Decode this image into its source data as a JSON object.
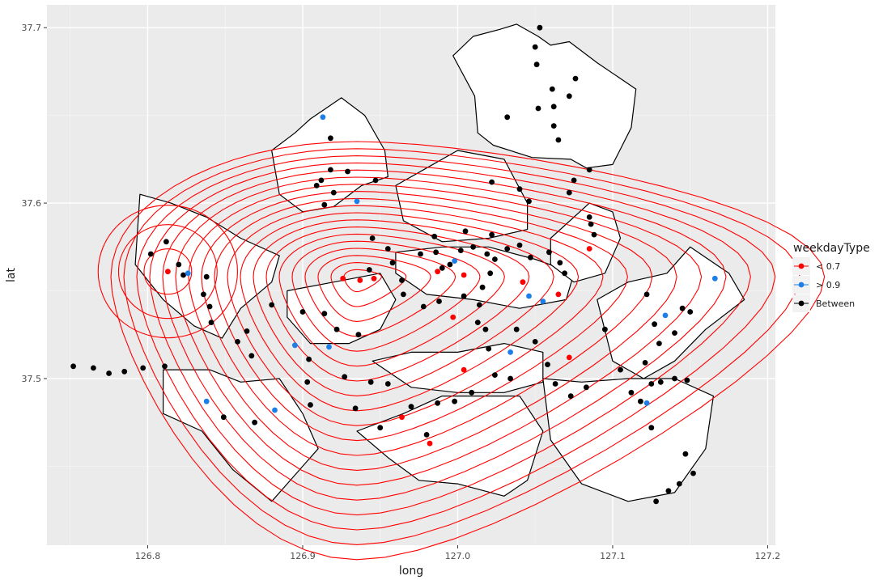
{
  "chart_data": {
    "type": "scatter",
    "xlabel": "long",
    "ylabel": "lat",
    "xlim": [
      126.735,
      127.205
    ],
    "ylim": [
      126.0,
      37.0
    ],
    "xlim_data": [
      126.735,
      127.205
    ],
    "ylim_data": [
      37.405,
      37.713
    ],
    "x_ticks": [
      126.8,
      126.9,
      127.0,
      127.1,
      127.2
    ],
    "x_tick_labels": [
      "126.8",
      "126.9",
      "127.0",
      "127.1",
      "127.2"
    ],
    "y_ticks": [
      37.5,
      37.6,
      37.7
    ],
    "y_tick_labels": [
      "37.5",
      "37.6",
      "37.7"
    ],
    "grid": true,
    "legend": {
      "title": "weekdayType",
      "placement": "right",
      "entries": [
        {
          "label": "< 0.7",
          "color": "#ff0000"
        },
        {
          "label": "> 0.9",
          "color": "#1e7ee8"
        },
        {
          "label": "Between",
          "color": "#000000"
        }
      ]
    },
    "series": [
      {
        "name": "< 0.7",
        "color": "#ff0000",
        "points": [
          [
            126.813,
            37.561
          ],
          [
            126.926,
            37.557
          ],
          [
            126.937,
            37.556
          ],
          [
            126.946,
            37.557
          ],
          [
            126.987,
            37.561
          ],
          [
            126.997,
            37.535
          ],
          [
            127.004,
            37.559
          ],
          [
            127.004,
            37.505
          ],
          [
            127.042,
            37.555
          ],
          [
            127.065,
            37.548
          ],
          [
            127.085,
            37.574
          ],
          [
            127.072,
            37.512
          ],
          [
            126.964,
            37.478
          ],
          [
            126.982,
            37.463
          ]
        ]
      },
      {
        "name": "> 0.9",
        "color": "#1e7ee8",
        "points": [
          [
            126.913,
            37.649
          ],
          [
            126.935,
            37.601
          ],
          [
            126.826,
            37.56
          ],
          [
            126.895,
            37.519
          ],
          [
            126.917,
            37.518
          ],
          [
            126.838,
            37.487
          ],
          [
            126.882,
            37.482
          ],
          [
            126.998,
            37.567
          ],
          [
            127.046,
            37.547
          ],
          [
            127.055,
            37.544
          ],
          [
            127.034,
            37.515
          ],
          [
            127.134,
            37.536
          ],
          [
            127.166,
            37.557
          ],
          [
            127.122,
            37.486
          ]
        ]
      },
      {
        "name": "Between",
        "color": "#000000",
        "points": [
          [
            127.053,
            37.7
          ],
          [
            127.05,
            37.689
          ],
          [
            127.051,
            37.679
          ],
          [
            127.032,
            37.649
          ],
          [
            127.052,
            37.654
          ],
          [
            127.061,
            37.665
          ],
          [
            127.062,
            37.655
          ],
          [
            127.072,
            37.661
          ],
          [
            127.076,
            37.671
          ],
          [
            127.062,
            37.644
          ],
          [
            127.065,
            37.636
          ],
          [
            127.022,
            37.612
          ],
          [
            127.04,
            37.608
          ],
          [
            127.046,
            37.601
          ],
          [
            127.075,
            37.613
          ],
          [
            127.085,
            37.619
          ],
          [
            127.072,
            37.606
          ],
          [
            127.085,
            37.592
          ],
          [
            127.086,
            37.588
          ],
          [
            127.088,
            37.582
          ],
          [
            126.918,
            37.637
          ],
          [
            126.918,
            37.619
          ],
          [
            126.929,
            37.618
          ],
          [
            126.912,
            37.613
          ],
          [
            126.92,
            37.606
          ],
          [
            126.914,
            37.599
          ],
          [
            126.909,
            37.61
          ],
          [
            126.947,
            37.613
          ],
          [
            126.802,
            37.571
          ],
          [
            126.812,
            37.578
          ],
          [
            126.82,
            37.565
          ],
          [
            126.838,
            37.558
          ],
          [
            126.836,
            37.548
          ],
          [
            126.84,
            37.541
          ],
          [
            126.841,
            37.532
          ],
          [
            126.823,
            37.559
          ],
          [
            126.864,
            37.527
          ],
          [
            126.858,
            37.521
          ],
          [
            126.867,
            37.513
          ],
          [
            126.849,
            37.478
          ],
          [
            126.869,
            37.475
          ],
          [
            126.904,
            37.511
          ],
          [
            126.903,
            37.498
          ],
          [
            126.905,
            37.485
          ],
          [
            126.927,
            37.501
          ],
          [
            126.934,
            37.483
          ],
          [
            126.944,
            37.498
          ],
          [
            126.955,
            37.497
          ],
          [
            126.97,
            37.484
          ],
          [
            126.98,
            37.468
          ],
          [
            126.987,
            37.486
          ],
          [
            126.998,
            37.487
          ],
          [
            127.009,
            37.492
          ],
          [
            126.95,
            37.472
          ],
          [
            126.943,
            37.562
          ],
          [
            126.958,
            37.566
          ],
          [
            126.964,
            37.556
          ],
          [
            126.976,
            37.571
          ],
          [
            126.986,
            37.572
          ],
          [
            126.99,
            37.563
          ],
          [
            126.995,
            37.565
          ],
          [
            127.002,
            37.573
          ],
          [
            127.01,
            37.575
          ],
          [
            127.019,
            37.571
          ],
          [
            127.024,
            37.568
          ],
          [
            127.032,
            37.574
          ],
          [
            127.04,
            37.576
          ],
          [
            127.047,
            37.569
          ],
          [
            127.059,
            37.572
          ],
          [
            127.066,
            37.566
          ],
          [
            127.069,
            37.56
          ],
          [
            127.021,
            37.56
          ],
          [
            127.016,
            37.552
          ],
          [
            127.014,
            37.542
          ],
          [
            127.018,
            37.528
          ],
          [
            127.02,
            37.517
          ],
          [
            127.024,
            37.502
          ],
          [
            127.034,
            37.5
          ],
          [
            127.038,
            37.528
          ],
          [
            127.05,
            37.521
          ],
          [
            127.058,
            37.508
          ],
          [
            127.063,
            37.497
          ],
          [
            127.073,
            37.49
          ],
          [
            127.083,
            37.495
          ],
          [
            127.095,
            37.528
          ],
          [
            127.105,
            37.505
          ],
          [
            127.112,
            37.492
          ],
          [
            127.118,
            37.487
          ],
          [
            127.125,
            37.497
          ],
          [
            127.13,
            37.52
          ],
          [
            127.14,
            37.526
          ],
          [
            127.145,
            37.54
          ],
          [
            127.15,
            37.538
          ],
          [
            127.122,
            37.548
          ],
          [
            127.127,
            37.531
          ],
          [
            127.121,
            37.509
          ],
          [
            127.131,
            37.498
          ],
          [
            127.14,
            37.5
          ],
          [
            127.148,
            37.499
          ],
          [
            127.125,
            37.472
          ],
          [
            126.752,
            37.507
          ],
          [
            126.765,
            37.506
          ],
          [
            126.775,
            37.503
          ],
          [
            126.785,
            37.504
          ],
          [
            126.797,
            37.506
          ],
          [
            126.811,
            37.507
          ],
          [
            127.147,
            37.457
          ],
          [
            127.152,
            37.446
          ],
          [
            127.143,
            37.44
          ],
          [
            127.136,
            37.436
          ],
          [
            127.128,
            37.43
          ],
          [
            126.945,
            37.58
          ],
          [
            126.955,
            37.574
          ],
          [
            126.985,
            37.581
          ],
          [
            127.005,
            37.584
          ],
          [
            127.022,
            37.582
          ],
          [
            126.965,
            37.548
          ],
          [
            126.978,
            37.541
          ],
          [
            126.988,
            37.544
          ],
          [
            127.004,
            37.547
          ],
          [
            127.013,
            37.532
          ],
          [
            126.922,
            37.528
          ],
          [
            126.914,
            37.537
          ],
          [
            126.936,
            37.525
          ],
          [
            126.88,
            37.542
          ],
          [
            126.9,
            37.538
          ]
        ]
      }
    ],
    "district_outlines": [
      [
        [
          127.027,
          37.699
        ],
        [
          127.038,
          37.702
        ],
        [
          127.052,
          37.695
        ],
        [
          127.06,
          37.69
        ],
        [
          127.072,
          37.692
        ],
        [
          127.09,
          37.68
        ],
        [
          127.115,
          37.665
        ],
        [
          127.112,
          37.643
        ],
        [
          127.1,
          37.622
        ],
        [
          127.083,
          37.62
        ],
        [
          127.073,
          37.625
        ],
        [
          127.048,
          37.626
        ],
        [
          127.023,
          37.633
        ],
        [
          127.013,
          37.64
        ],
        [
          127.011,
          37.661
        ],
        [
          126.997,
          37.684
        ],
        [
          127.01,
          37.695
        ],
        [
          127.027,
          37.699
        ]
      ],
      [
        [
          126.88,
          37.63
        ],
        [
          126.895,
          37.64
        ],
        [
          126.905,
          37.648
        ],
        [
          126.925,
          37.66
        ],
        [
          126.94,
          37.65
        ],
        [
          126.953,
          37.63
        ],
        [
          126.955,
          37.615
        ],
        [
          126.938,
          37.61
        ],
        [
          126.92,
          37.598
        ],
        [
          126.9,
          37.595
        ],
        [
          126.885,
          37.605
        ],
        [
          126.88,
          37.63
        ]
      ],
      [
        [
          126.795,
          37.605
        ],
        [
          126.815,
          37.6
        ],
        [
          126.838,
          37.592
        ],
        [
          126.86,
          37.58
        ],
        [
          126.885,
          37.57
        ],
        [
          126.88,
          37.555
        ],
        [
          126.86,
          37.54
        ],
        [
          126.848,
          37.523
        ],
        [
          126.83,
          37.53
        ],
        [
          126.81,
          37.545
        ],
        [
          126.792,
          37.565
        ],
        [
          126.795,
          37.605
        ]
      ],
      [
        [
          126.81,
          37.505
        ],
        [
          126.84,
          37.505
        ],
        [
          126.86,
          37.498
        ],
        [
          126.885,
          37.5
        ],
        [
          126.9,
          37.48
        ],
        [
          126.91,
          37.46
        ],
        [
          126.89,
          37.44
        ],
        [
          126.88,
          37.43
        ],
        [
          126.855,
          37.448
        ],
        [
          126.835,
          37.47
        ],
        [
          126.81,
          37.48
        ],
        [
          126.81,
          37.505
        ]
      ],
      [
        [
          126.935,
          37.47
        ],
        [
          126.955,
          37.455
        ],
        [
          126.975,
          37.442
        ],
        [
          127.0,
          37.44
        ],
        [
          127.03,
          37.433
        ],
        [
          127.045,
          37.442
        ],
        [
          127.055,
          37.47
        ],
        [
          127.04,
          37.49
        ],
        [
          127.01,
          37.49
        ],
        [
          126.99,
          37.49
        ],
        [
          126.965,
          37.48
        ],
        [
          126.935,
          37.47
        ]
      ],
      [
        [
          127.055,
          37.5
        ],
        [
          127.08,
          37.498
        ],
        [
          127.11,
          37.5
        ],
        [
          127.14,
          37.5
        ],
        [
          127.165,
          37.49
        ],
        [
          127.16,
          37.46
        ],
        [
          127.14,
          37.435
        ],
        [
          127.11,
          37.43
        ],
        [
          127.08,
          37.44
        ],
        [
          127.06,
          37.465
        ],
        [
          127.055,
          37.5
        ]
      ],
      [
        [
          127.09,
          37.545
        ],
        [
          127.11,
          37.555
        ],
        [
          127.135,
          37.56
        ],
        [
          127.15,
          37.575
        ],
        [
          127.175,
          37.56
        ],
        [
          127.185,
          37.545
        ],
        [
          127.16,
          37.528
        ],
        [
          127.14,
          37.51
        ],
        [
          127.12,
          37.5
        ],
        [
          127.1,
          37.51
        ],
        [
          127.09,
          37.545
        ]
      ],
      [
        [
          126.96,
          37.61
        ],
        [
          126.98,
          37.62
        ],
        [
          127.0,
          37.63
        ],
        [
          127.03,
          37.625
        ],
        [
          127.045,
          37.6
        ],
        [
          127.045,
          37.585
        ],
        [
          127.02,
          37.58
        ],
        [
          126.99,
          37.578
        ],
        [
          126.965,
          37.59
        ],
        [
          126.96,
          37.61
        ]
      ],
      [
        [
          126.96,
          37.572
        ],
        [
          126.99,
          37.575
        ],
        [
          127.02,
          37.575
        ],
        [
          127.05,
          37.568
        ],
        [
          127.075,
          37.56
        ],
        [
          127.07,
          37.545
        ],
        [
          127.04,
          37.54
        ],
        [
          127.01,
          37.545
        ],
        [
          126.98,
          37.548
        ],
        [
          126.96,
          37.56
        ],
        [
          126.96,
          37.572
        ]
      ],
      [
        [
          126.89,
          37.55
        ],
        [
          126.92,
          37.555
        ],
        [
          126.95,
          37.56
        ],
        [
          126.96,
          37.545
        ],
        [
          126.95,
          37.528
        ],
        [
          126.93,
          37.52
        ],
        [
          126.905,
          37.52
        ],
        [
          126.89,
          37.535
        ],
        [
          126.89,
          37.55
        ]
      ],
      [
        [
          126.945,
          37.51
        ],
        [
          126.97,
          37.515
        ],
        [
          127.0,
          37.515
        ],
        [
          127.03,
          37.52
        ],
        [
          127.055,
          37.515
        ],
        [
          127.055,
          37.498
        ],
        [
          127.03,
          37.492
        ],
        [
          127.0,
          37.492
        ],
        [
          126.97,
          37.495
        ],
        [
          126.945,
          37.51
        ]
      ],
      [
        [
          127.06,
          37.58
        ],
        [
          127.085,
          37.6
        ],
        [
          127.1,
          37.595
        ],
        [
          127.105,
          37.58
        ],
        [
          127.095,
          37.56
        ],
        [
          127.075,
          37.555
        ],
        [
          127.06,
          37.565
        ],
        [
          127.06,
          37.58
        ]
      ]
    ],
    "contour_levels": 19,
    "contour_color": "#ff0000",
    "contour_center": [
      126.935,
      37.558
    ],
    "contour_focus": [
      127.0,
      37.51
    ]
  }
}
